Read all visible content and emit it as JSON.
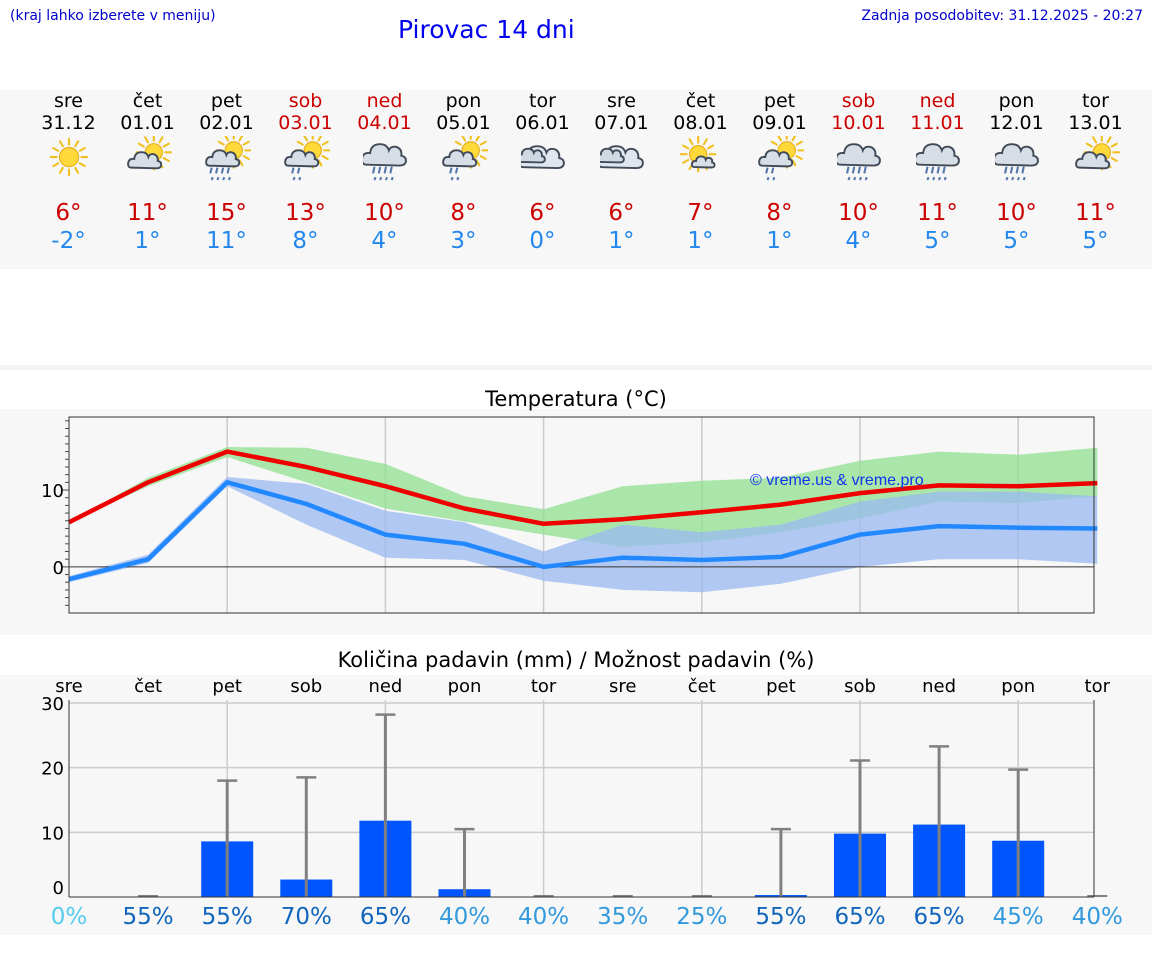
{
  "header": {
    "hint": "(kraj lahko izberete v meniju)",
    "title": "Pirovac 14 dni",
    "updated": "Zadnja posodobitev: 31.12.2025 - 20:27"
  },
  "days": [
    {
      "name": "sre",
      "date": "31.12",
      "icon": "sun-icon",
      "max": "6°",
      "min": "-2°",
      "weekend": false
    },
    {
      "name": "čet",
      "date": "01.01",
      "icon": "sun-cloud-icon",
      "max": "11°",
      "min": "1°",
      "weekend": false
    },
    {
      "name": "pet",
      "date": "02.01",
      "icon": "sun-cloud-rain-icon",
      "max": "15°",
      "min": "11°",
      "weekend": false
    },
    {
      "name": "sob",
      "date": "03.01",
      "icon": "sun-cloud-light-rain-icon",
      "max": "13°",
      "min": "8°",
      "weekend": true
    },
    {
      "name": "ned",
      "date": "04.01",
      "icon": "cloud-rain-icon",
      "max": "10°",
      "min": "4°",
      "weekend": true
    },
    {
      "name": "pon",
      "date": "05.01",
      "icon": "sun-cloud-light-rain-icon",
      "max": "8°",
      "min": "3°",
      "weekend": false
    },
    {
      "name": "tor",
      "date": "06.01",
      "icon": "cloudy-icon",
      "max": "6°",
      "min": "0°",
      "weekend": false
    },
    {
      "name": "sre",
      "date": "07.01",
      "icon": "cloudy-icon",
      "max": "6°",
      "min": "1°",
      "weekend": false
    },
    {
      "name": "čet",
      "date": "08.01",
      "icon": "sun-small-cloud-icon",
      "max": "7°",
      "min": "1°",
      "weekend": false
    },
    {
      "name": "pet",
      "date": "09.01",
      "icon": "sun-cloud-light-rain-icon",
      "max": "8°",
      "min": "1°",
      "weekend": false
    },
    {
      "name": "sob",
      "date": "10.01",
      "icon": "cloud-rain-icon",
      "max": "10°",
      "min": "4°",
      "weekend": true
    },
    {
      "name": "ned",
      "date": "11.01",
      "icon": "cloud-rain-icon",
      "max": "11°",
      "min": "5°",
      "weekend": true
    },
    {
      "name": "pon",
      "date": "12.01",
      "icon": "cloud-rain-icon",
      "max": "10°",
      "min": "5°",
      "weekend": false
    },
    {
      "name": "tor",
      "date": "13.01",
      "icon": "sun-cloud-icon",
      "max": "11°",
      "min": "5°",
      "weekend": false
    }
  ],
  "colors": {
    "max": "#ee0000",
    "min": "#2288ff",
    "max_band": "#90e090",
    "min_band": "#99b9f0",
    "bar": "#0055ff",
    "whisker": "#808080",
    "pct_light": "#55ccee",
    "pct_mid": "#3399dd",
    "pct_dark": "#1166bb"
  },
  "chart_data": [
    {
      "type": "line",
      "title": "Temperatura (°C)",
      "watermark": "© vreme.us & vreme.pro",
      "x": [
        0,
        1,
        2,
        3,
        4,
        5,
        6,
        7,
        8,
        9,
        10,
        11,
        12,
        13
      ],
      "ylim": [
        -6,
        19.5
      ],
      "yticks": [
        0,
        10
      ],
      "grid": true,
      "series": [
        {
          "name": "max",
          "values": [
            5.8,
            11,
            15,
            13,
            10.5,
            7.6,
            5.6,
            6.2,
            7.1,
            8.1,
            9.6,
            10.6,
            10.5,
            10.9
          ]
        },
        {
          "name": "min",
          "values": [
            -1.6,
            1,
            11,
            8.2,
            4.2,
            3,
            0,
            1.2,
            0.9,
            1.3,
            4.2,
            5.3,
            5.1,
            5
          ]
        }
      ],
      "max_band_low": [
        5.8,
        10.5,
        14.3,
        11,
        7.6,
        5.9,
        4.2,
        2.6,
        3.2,
        4.5,
        6.3,
        8.5,
        8.3,
        9.2
      ],
      "max_band_high": [
        5.8,
        11.6,
        15.6,
        15.5,
        13.4,
        9.2,
        7.5,
        10.5,
        11.2,
        11.6,
        13.8,
        15,
        14.6,
        15.5
      ],
      "min_band_low": [
        -2,
        0.5,
        10.5,
        5.5,
        1.2,
        0.9,
        -1.8,
        -3,
        -3.3,
        -2.2,
        0,
        1,
        1,
        0.4
      ],
      "min_band_high": [
        -1.2,
        1.6,
        11.7,
        10.8,
        7.3,
        5.8,
        2,
        5.5,
        4.5,
        5.5,
        8.5,
        9.8,
        9.8,
        9.2
      ]
    },
    {
      "type": "bar",
      "title": "Količina padavin (mm) / Možnost padavin (%)",
      "categories": [
        "sre",
        "čet",
        "pet",
        "sob",
        "ned",
        "pon",
        "tor",
        "sre",
        "čet",
        "pet",
        "sob",
        "ned",
        "pon",
        "tor"
      ],
      "ylim": [
        0,
        30
      ],
      "yticks": [
        0,
        10,
        20,
        30
      ],
      "grid": true,
      "values": [
        0,
        0,
        8.6,
        2.7,
        11.8,
        1.2,
        0,
        0,
        0,
        0.3,
        9.8,
        11.2,
        8.7,
        0
      ],
      "whisker_max": [
        0,
        0,
        18,
        18.5,
        28.2,
        10.5,
        0,
        0,
        0,
        10.5,
        21.1,
        23.3,
        19.7,
        0
      ],
      "chance": [
        "0%",
        "55%",
        "55%",
        "70%",
        "65%",
        "40%",
        "40%",
        "35%",
        "25%",
        "55%",
        "65%",
        "65%",
        "45%",
        "40%"
      ]
    }
  ]
}
